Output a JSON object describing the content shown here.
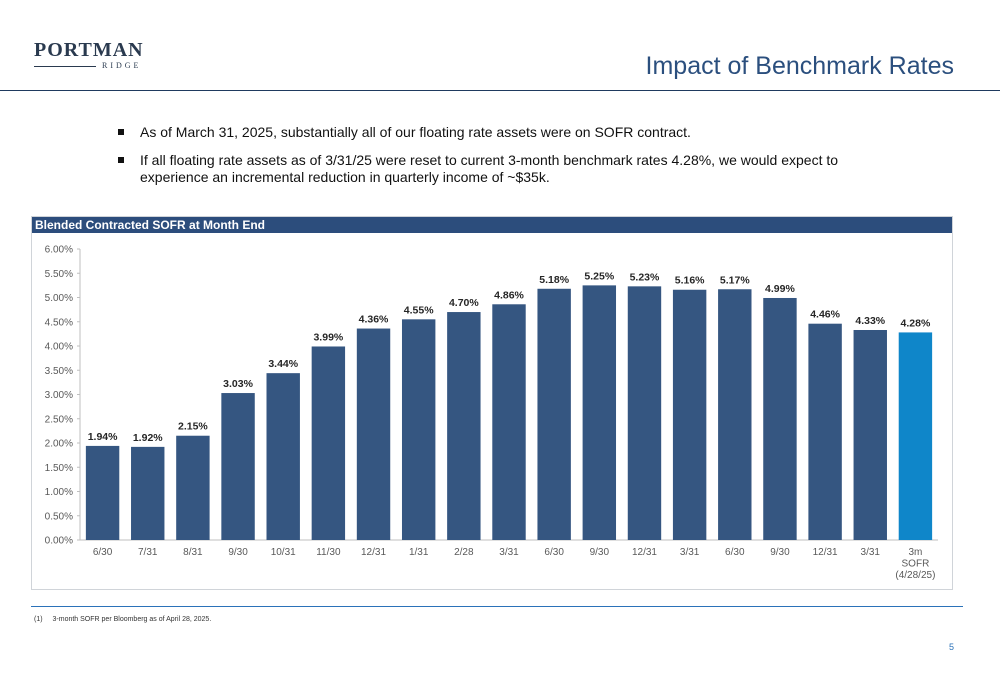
{
  "logo": {
    "main": "PORTMAN",
    "sub": "RIDGE"
  },
  "header": {
    "title": "Impact of Benchmark Rates"
  },
  "bullets": [
    "As of March 31, 2025, substantially all of our floating rate assets were on SOFR contract.",
    "If all floating rate assets as of 3/31/25 were reset to current 3-month benchmark rates 4.28%, we would expect to experience an incremental reduction in quarterly income of ~$35k."
  ],
  "chart_data": {
    "type": "bar",
    "title": "Blended Contracted SOFR at Month End",
    "categories": [
      "6/30",
      "7/31",
      "8/31",
      "9/30",
      "10/31",
      "11/30",
      "12/31",
      "1/31",
      "2/28",
      "3/31",
      "6/30",
      "9/30",
      "12/31",
      "3/31",
      "6/30",
      "9/30",
      "12/31",
      "3/31",
      "3m SOFR (4/28/25)"
    ],
    "category_lines": [
      [
        "6/30"
      ],
      [
        "7/31"
      ],
      [
        "8/31"
      ],
      [
        "9/30"
      ],
      [
        "10/31"
      ],
      [
        "11/30"
      ],
      [
        "12/31"
      ],
      [
        "1/31"
      ],
      [
        "2/28"
      ],
      [
        "3/31"
      ],
      [
        "6/30"
      ],
      [
        "9/30"
      ],
      [
        "12/31"
      ],
      [
        "3/31"
      ],
      [
        "6/30"
      ],
      [
        "9/30"
      ],
      [
        "12/31"
      ],
      [
        "3/31"
      ],
      [
        "3m",
        "SOFR",
        "(4/28/25)"
      ]
    ],
    "values": [
      1.94,
      1.92,
      2.15,
      3.03,
      3.44,
      3.99,
      4.36,
      4.55,
      4.7,
      4.86,
      5.18,
      5.25,
      5.23,
      5.16,
      5.17,
      4.99,
      4.46,
      4.33,
      4.28
    ],
    "data_labels": [
      "1.94%",
      "1.92%",
      "2.15%",
      "3.03%",
      "3.44%",
      "3.99%",
      "4.36%",
      "4.55%",
      "4.70%",
      "4.86%",
      "5.18%",
      "5.25%",
      "5.23%",
      "5.16%",
      "5.17%",
      "4.99%",
      "4.46%",
      "4.33%",
      "4.28%"
    ],
    "ylim": [
      0,
      6
    ],
    "y_ticks": [
      0,
      0.5,
      1,
      1.5,
      2,
      2.5,
      3,
      3.5,
      4,
      4.5,
      5,
      5.5,
      6
    ],
    "y_tick_labels": [
      "0.00%",
      "0.50%",
      "1.00%",
      "1.50%",
      "2.00%",
      "2.50%",
      "3.00%",
      "3.50%",
      "4.00%",
      "4.50%",
      "5.00%",
      "5.50%",
      "6.00%"
    ],
    "grid": false,
    "legend": "none",
    "colors": {
      "bar": "#355681",
      "highlight": "#0f86c9"
    },
    "highlight_index": 18
  },
  "footnote": {
    "number": "(1)",
    "text": "3-month SOFR per Bloomberg as of April 28, 2025."
  },
  "page_number": "5"
}
